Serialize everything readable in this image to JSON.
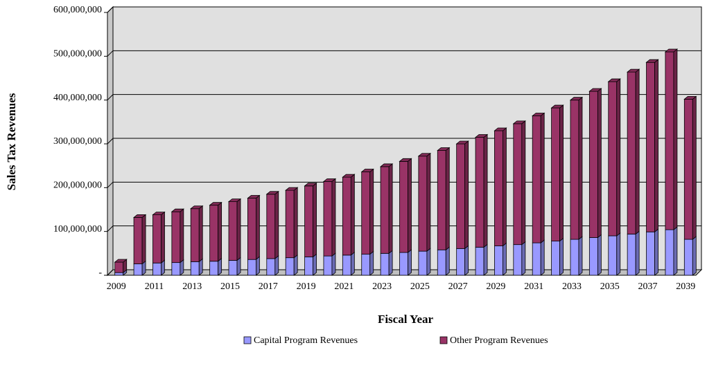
{
  "chart_data": {
    "type": "bar3d-stacked",
    "y_label": "Sales Tax Revenues",
    "x_label": "Fiscal Year",
    "categories": [
      "2009",
      null,
      "2011",
      null,
      "2013",
      null,
      "2015",
      null,
      "2017",
      null,
      "2019",
      null,
      "2021",
      null,
      "2023",
      null,
      "2025",
      null,
      "2027",
      null,
      "2029",
      null,
      "2031",
      null,
      "2033",
      null,
      "2035",
      null,
      "2037",
      null,
      "2039"
    ],
    "series": [
      {
        "name": "Capital Program Revenues",
        "color": "#9999ff",
        "values": [
          6000000,
          26000000,
          28000000,
          29000000,
          31000000,
          32000000,
          34000000,
          36000000,
          38000000,
          40000000,
          42000000,
          44000000,
          46000000,
          48000000,
          50000000,
          52000000,
          55000000,
          58000000,
          61000000,
          64000000,
          67000000,
          70000000,
          74000000,
          78000000,
          82000000,
          86000000,
          90000000,
          94000000,
          99000000,
          104000000,
          82000000
        ]
      },
      {
        "name": "Other Program Revenues",
        "color": "#993366",
        "values": [
          24000000,
          106000000,
          110000000,
          116000000,
          121000000,
          128000000,
          134000000,
          140000000,
          147000000,
          154000000,
          162000000,
          170000000,
          178000000,
          188000000,
          198000000,
          208000000,
          217000000,
          227000000,
          239000000,
          251000000,
          263000000,
          276000000,
          290000000,
          304000000,
          318000000,
          334000000,
          352000000,
          370000000,
          387000000,
          406000000,
          320000000
        ]
      }
    ],
    "ylim": [
      0,
      600000000
    ],
    "yticks": [
      {
        "value": 0,
        "label": "-"
      },
      {
        "value": 100000000,
        "label": "100,000,000"
      },
      {
        "value": 200000000,
        "label": "200,000,000"
      },
      {
        "value": 300000000,
        "label": "300,000,000"
      },
      {
        "value": 400000000,
        "label": "400,000,000"
      },
      {
        "value": 500000000,
        "label": "500,000,000"
      },
      {
        "value": 600000000,
        "label": "600,000,000"
      }
    ],
    "grid": true,
    "legend": "bottom"
  }
}
